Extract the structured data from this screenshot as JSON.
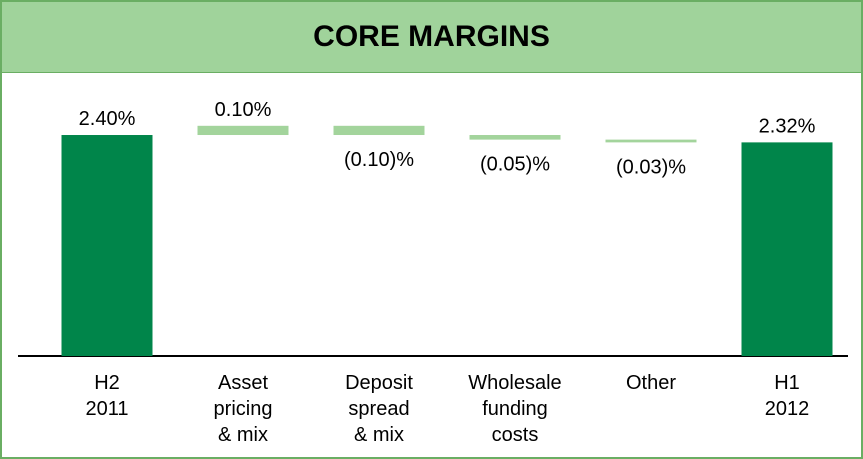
{
  "chart_data": {
    "type": "waterfall",
    "title": "CORE MARGINS",
    "categories": [
      "H2\n2011",
      "Asset\npricing\n& mix",
      "Deposit\nspread\n& mix",
      "Wholesale\nfunding\ncosts",
      "Other",
      "H1\n2012"
    ],
    "values": [
      2.4,
      0.1,
      -0.1,
      -0.05,
      -0.03,
      2.32
    ],
    "value_labels": [
      "2.40%",
      "0.10%",
      "(0.10)%",
      "(0.05)%",
      "(0.03)%",
      "2.32%"
    ],
    "colors": [
      "#00854a",
      "#a3d49c",
      "#a3d49c",
      "#a3d49c",
      "#a3d49c",
      "#00854a"
    ],
    "ylim": [
      0,
      2.6
    ]
  }
}
